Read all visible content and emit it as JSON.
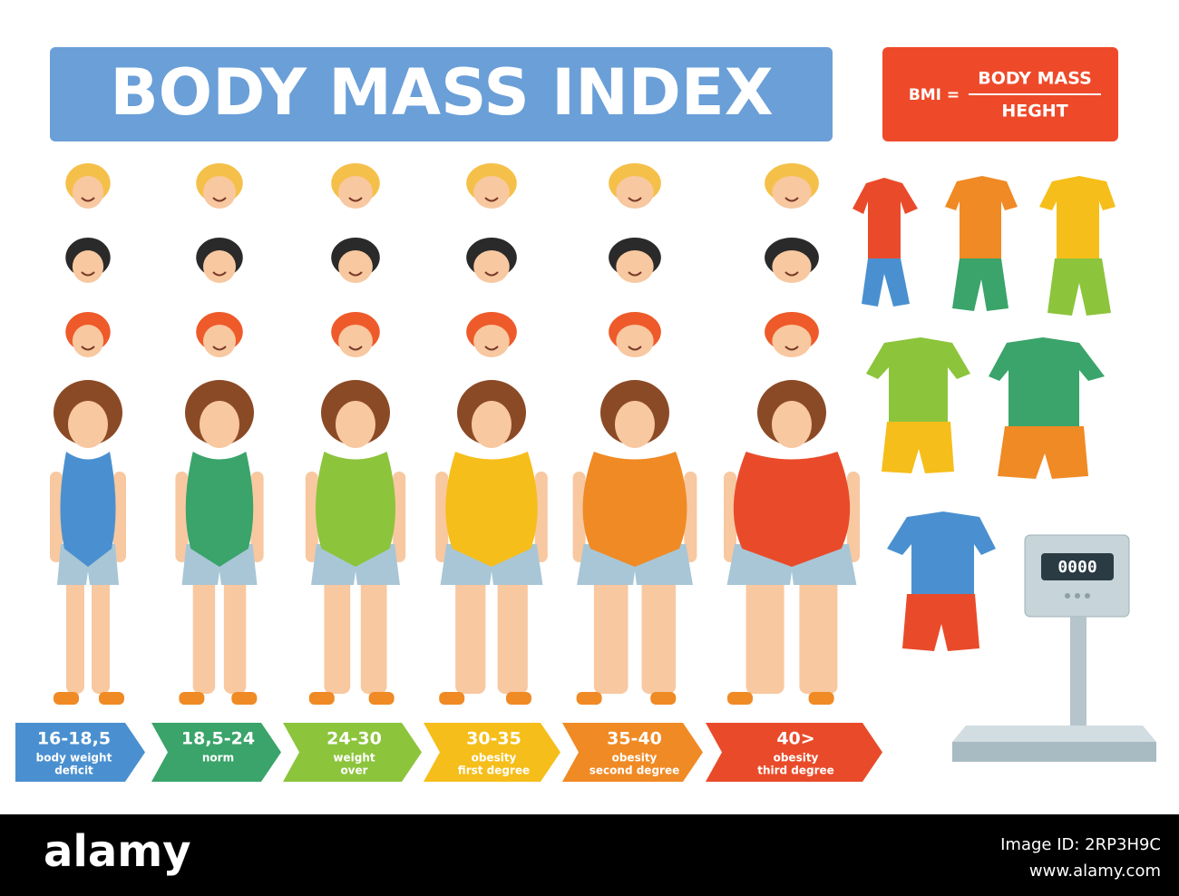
{
  "header": {
    "title": "BODY MASS INDEX"
  },
  "formula": {
    "lhs": "BMI =",
    "numerator": "BODY MASS",
    "denominator": "HEGHT"
  },
  "categories": [
    {
      "range": "16-18,5",
      "lines": [
        "body weight",
        "deficit"
      ]
    },
    {
      "range": "18,5-24",
      "lines": [
        "norm"
      ]
    },
    {
      "range": "24-30",
      "lines": [
        "weight",
        "over"
      ]
    },
    {
      "range": "30-35",
      "lines": [
        "obesity",
        "first degree"
      ]
    },
    {
      "range": "35-40",
      "lines": [
        "obesity",
        "second degree"
      ]
    },
    {
      "range": "40>",
      "lines": [
        "obesity",
        "third degree"
      ]
    }
  ],
  "scale": {
    "display": "0000"
  },
  "footer": {
    "brand": "alamy",
    "image_id": "Image ID: 2RP3H9C",
    "url": "www.alamy.com"
  }
}
